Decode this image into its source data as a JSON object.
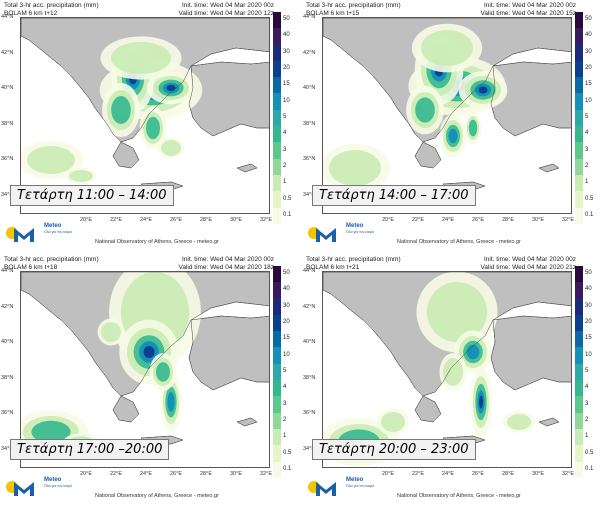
{
  "colorbar": {
    "labels": [
      "50",
      "40",
      "30",
      "20",
      "15",
      "10",
      "5",
      "4",
      "3",
      "2",
      "1",
      "0.5",
      "0.1"
    ],
    "colors": [
      "#2a0a3a",
      "#3a1a5e",
      "#1b2a7a",
      "#0b3f8f",
      "#0a6aa8",
      "#1590b8",
      "#2fa8a8",
      "#35b88f",
      "#5cc98c",
      "#8fd89a",
      "#c9ebb4",
      "#e6f5c8",
      "#f6fbe6"
    ]
  },
  "lat_labels": [
    "44°N",
    "42°N",
    "40°N",
    "38°N",
    "36°N",
    "34°N"
  ],
  "lon_labels": [
    "20°E",
    "22°E",
    "24°E",
    "26°E",
    "28°E",
    "30°E",
    "32°E"
  ],
  "header_left_line1": "Total 3-hr acc. precipitation (mm)",
  "credit": "National Observatory of Athens, Greece - meteo.gr",
  "logo": {
    "name": "Meteo",
    "sub": "Όλα για τον καιρό"
  },
  "panels": [
    {
      "model": "BOLAM 6 km t+12",
      "init": "Init. time: Wed 04 Mar 2020 00z",
      "valid": "Valid time: Wed 04 Mar 2020 12z",
      "caption": "Τετάρτη 11:00 – 14:00"
    },
    {
      "model": "BOLAM 6 km t+15",
      "init": "Init. time: Wed 04 Mar 2020 00z",
      "valid": "Valid time: Wed 04 Mar 2020 15z",
      "caption": "Τετάρτη 14:00 – 17:00"
    },
    {
      "model": "BOLAM 6 km t+18",
      "init": "Init. time: Wed 04 Mar 2020 00z",
      "valid": "Valid time: Wed 04 Mar 2020 18z",
      "caption": "Τετάρτη 17:00 –20:00"
    },
    {
      "model": "BOLAM 6 km t+21",
      "init": "Init. time: Wed 04 Mar 2020 00z",
      "valid": "Valid time: Wed 04 Mar 2020 21z",
      "caption": "Τετάρτη 20:00 – 23:00"
    }
  ]
}
